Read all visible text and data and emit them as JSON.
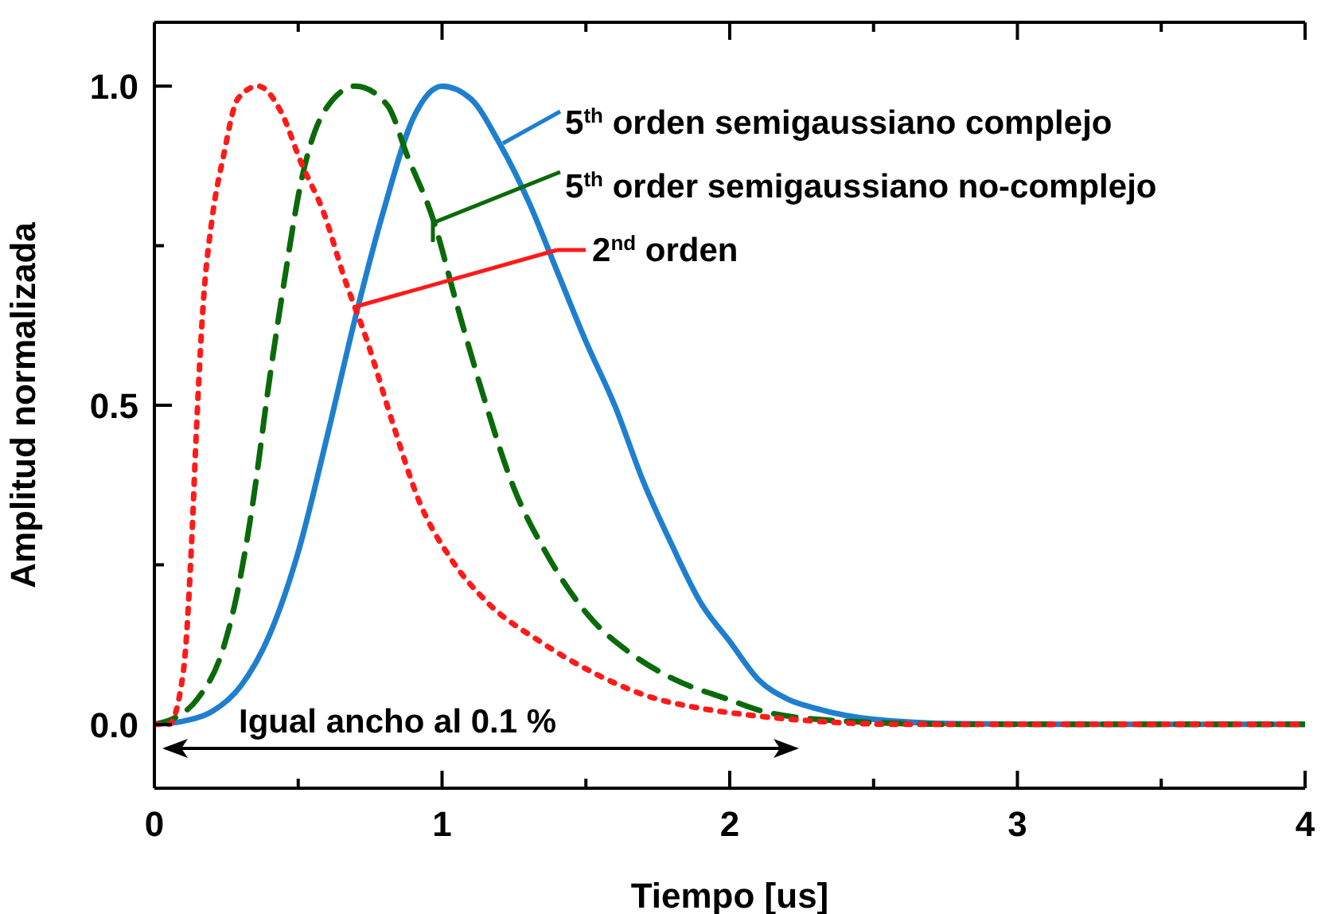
{
  "chart_data": {
    "type": "line",
    "xlabel": "Tiempo [us]",
    "ylabel": "Amplitud normalizada",
    "xlim": [
      0,
      4
    ],
    "xticks": [
      0,
      {
        "value": 0.5,
        "label": null
      },
      1,
      {
        "value": 1.5,
        "label": null
      },
      2,
      {
        "value": 2.5,
        "label": null
      },
      3,
      {
        "value": 3.5,
        "label": null
      },
      4
    ],
    "ylim": [
      -0.1,
      1.1
    ],
    "yticks": [
      {
        "value": 0,
        "label": "0.0"
      },
      {
        "value": 0.25,
        "label": null
      },
      {
        "value": 0.5,
        "label": "0.5"
      },
      {
        "value": 0.75,
        "label": null
      },
      {
        "value": 1,
        "label": "1.0"
      }
    ],
    "annotations": [
      "Igual ancho al 0.1 %"
    ],
    "legend": "top right",
    "series": [
      {
        "name": "5$^{th}$ orden semigaussiano complejo",
        "color": "#1f7fcf",
        "line_style": "solid",
        "x": [
          0,
          0.1,
          0.2,
          0.3,
          0.4,
          0.5,
          0.6,
          0.7,
          0.8,
          0.9,
          1.0,
          1.1,
          1.2,
          1.3,
          1.4,
          1.5,
          1.6,
          1.7,
          1.8,
          1.9,
          2.0,
          2.1,
          2.2,
          2.3,
          2.5,
          2.8,
          3.2,
          4
        ],
        "values": [
          0,
          0.005,
          0.02,
          0.06,
          0.14,
          0.27,
          0.45,
          0.64,
          0.81,
          0.95,
          1.0,
          0.98,
          0.91,
          0.82,
          0.71,
          0.6,
          0.5,
          0.38,
          0.28,
          0.19,
          0.13,
          0.07,
          0.04,
          0.025,
          0.008,
          0.001,
          0,
          0
        ]
      },
      {
        "name": "5$^{th}$ order semigaussiano no-complejo",
        "color": "#0a6a0a",
        "line_style": "dashed",
        "x": [
          0,
          0.07,
          0.15,
          0.24,
          0.29,
          0.34,
          0.4,
          0.45,
          0.51,
          0.59,
          0.7,
          0.81,
          0.88,
          0.97,
          1.05,
          1.14,
          1.25,
          1.36,
          1.51,
          1.66,
          1.81,
          1.99,
          2.12,
          2.4,
          2.8,
          4
        ],
        "values": [
          0,
          0.01,
          0.04,
          0.12,
          0.21,
          0.34,
          0.54,
          0.69,
          0.85,
          0.96,
          1.0,
          0.97,
          0.89,
          0.79,
          0.66,
          0.52,
          0.37,
          0.27,
          0.17,
          0.11,
          0.07,
          0.04,
          0.02,
          0.005,
          0,
          0
        ]
      },
      {
        "name": "2$^{nd}$ orden",
        "color": "#ff1a1a",
        "line_style": "dotted",
        "x": [
          0,
          0.05,
          0.1,
          0.13,
          0.145,
          0.17,
          0.2,
          0.24,
          0.29,
          0.36,
          0.44,
          0.51,
          0.59,
          0.66,
          0.74,
          0.83,
          0.92,
          1.03,
          1.16,
          1.34,
          1.53,
          1.71,
          1.9,
          2.06,
          2.3,
          2.6,
          4
        ],
        "values": [
          0,
          0,
          0.08,
          0.29,
          0.45,
          0.66,
          0.79,
          0.89,
          0.98,
          1.0,
          0.96,
          0.88,
          0.8,
          0.7,
          0.6,
          0.47,
          0.35,
          0.26,
          0.19,
          0.13,
          0.08,
          0.045,
          0.025,
          0.015,
          0.005,
          0,
          0
        ]
      }
    ]
  }
}
